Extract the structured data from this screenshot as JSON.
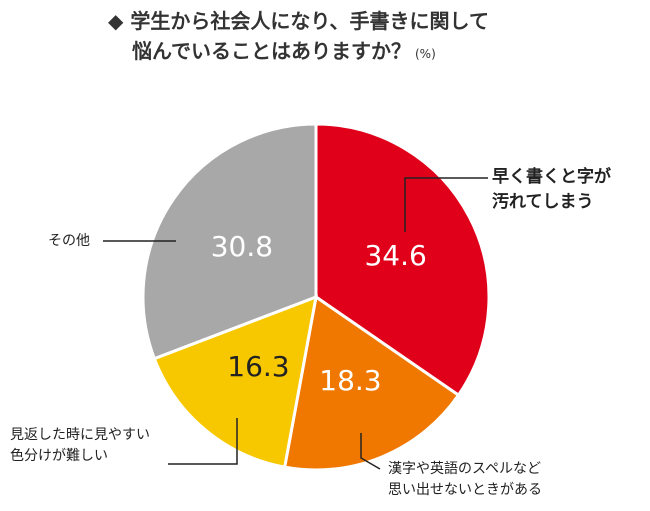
{
  "title": {
    "marker": "◆",
    "line1": "学生から社会人になり、手書きに関して",
    "line2": "悩んでいることはありますか？",
    "unit": "(%)"
  },
  "chart_data": {
    "type": "pie",
    "slices": [
      {
        "label_lines": [
          "早く書くと字が",
          "汚れてしまう"
        ],
        "value": 34.6,
        "value_text": "34.6",
        "color": "#e0001a"
      },
      {
        "label_lines": [
          "漢字や英語のスペルなど",
          "思い出せないときがある"
        ],
        "value": 18.3,
        "value_text": "18.3",
        "color": "#f07800"
      },
      {
        "label_lines": [
          "見返した時に見やすい",
          "色分けが難しい"
        ],
        "value": 16.3,
        "value_text": "16.3",
        "color": "#f7c800"
      },
      {
        "label_lines": [
          "その他"
        ],
        "value": 30.8,
        "value_text": "30.8",
        "color": "#a8a8a8"
      }
    ]
  }
}
